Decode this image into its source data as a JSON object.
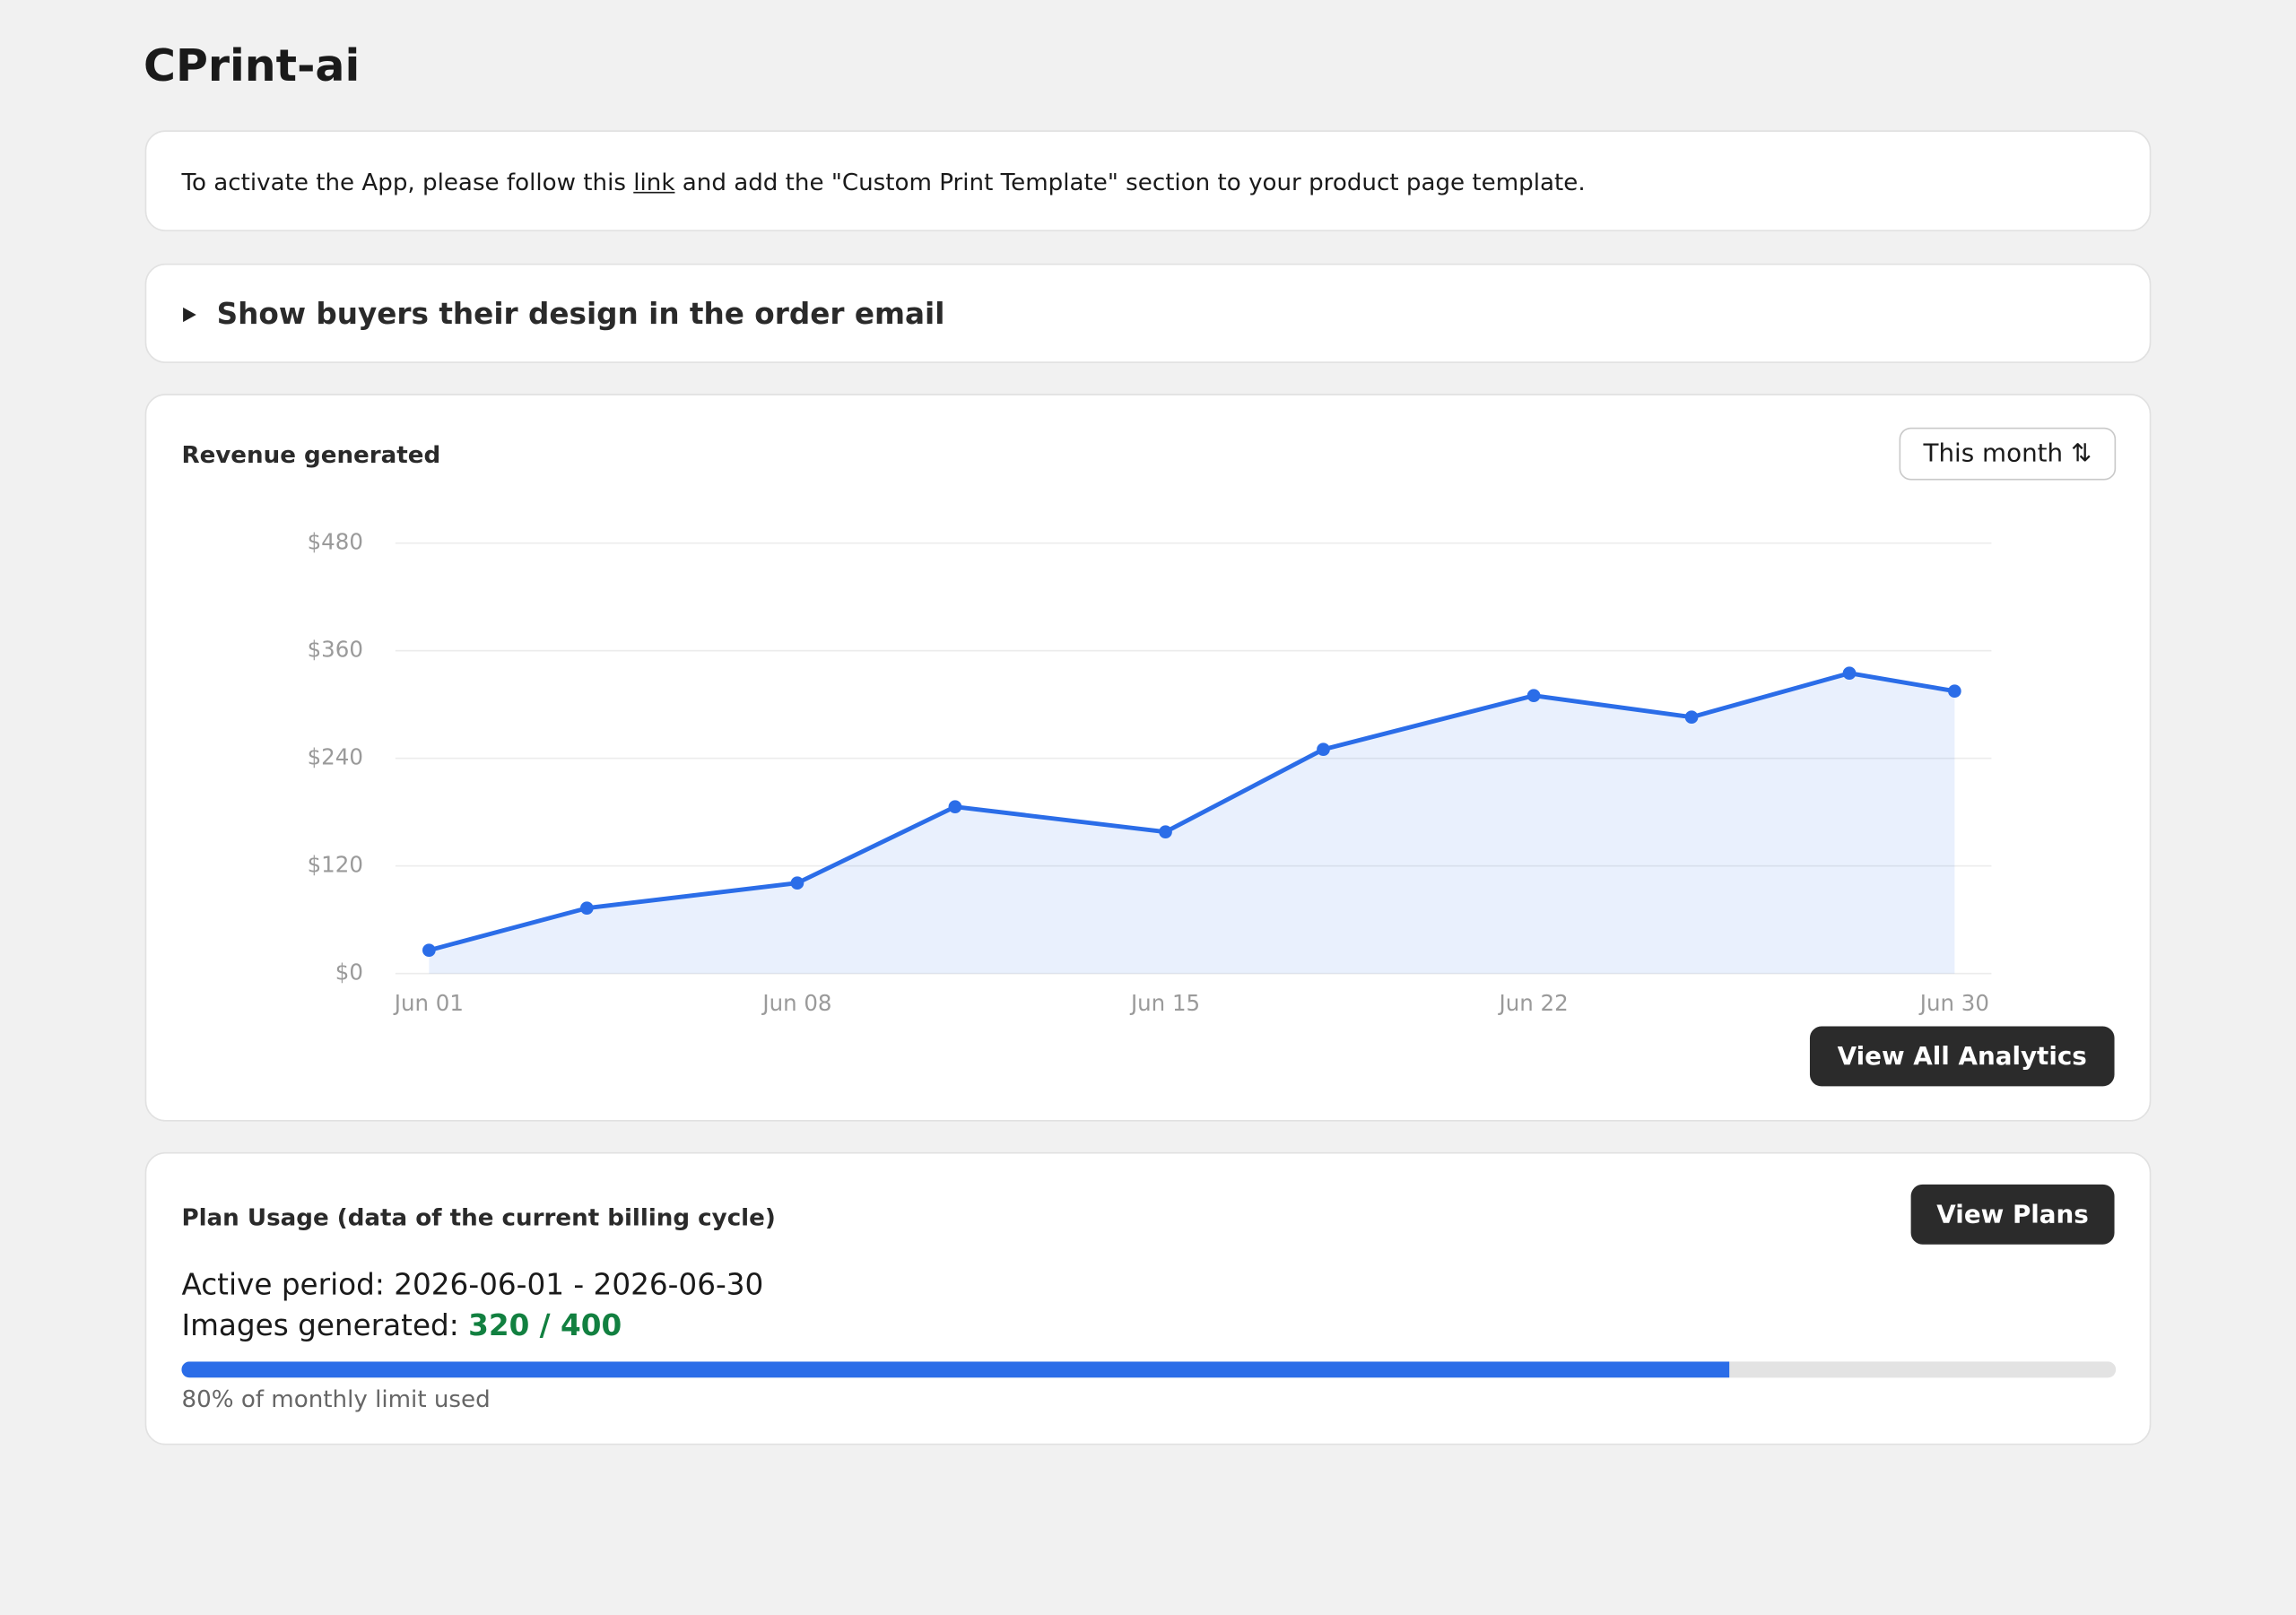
{
  "header": {
    "title": "CPrint-ai"
  },
  "notice": {
    "before": "To activate the App, please follow this ",
    "link": "link",
    "after": " and add the \"Custom Print Template\" section to your product page template."
  },
  "disclosure": {
    "title": "Show buyers their design in the order email"
  },
  "chart_data": {
    "type": "line",
    "title": "Revenue generated",
    "color": "#2b6de8",
    "grid": true,
    "x": [
      1,
      4,
      8,
      11,
      15,
      18,
      22,
      25,
      28,
      30
    ],
    "values": [
      26,
      73,
      101,
      186,
      158,
      250,
      310,
      286,
      335,
      315
    ],
    "xlim": [
      0.36,
      30.7
    ],
    "xticks": [
      {
        "value": 1,
        "label": "Jun 01"
      },
      {
        "value": 8,
        "label": "Jun 08"
      },
      {
        "value": 15,
        "label": "Jun 15"
      },
      {
        "value": 22,
        "label": "Jun 22"
      },
      {
        "value": 30,
        "label": "Jun 30"
      }
    ],
    "ylim": [
      0,
      480
    ],
    "yticks": [
      {
        "value": 0,
        "label": "$0"
      },
      {
        "value": 120,
        "label": "$120"
      },
      {
        "value": 240,
        "label": "$240"
      },
      {
        "value": 360,
        "label": "$360"
      },
      {
        "value": 480,
        "label": "$480"
      }
    ]
  },
  "period_select": "This month ⇅",
  "analytics_button": "View All Analytics",
  "plan": {
    "title": "Plan Usage (data of the current billing cycle)",
    "button": "View Plans",
    "period_label": "Active period:",
    "period_value": "2026-06-01 - 2026-06-30",
    "images_label": "Images generated:",
    "used": 320,
    "separator": "/",
    "limit": 400,
    "usage_note": "80% of monthly limit used"
  }
}
